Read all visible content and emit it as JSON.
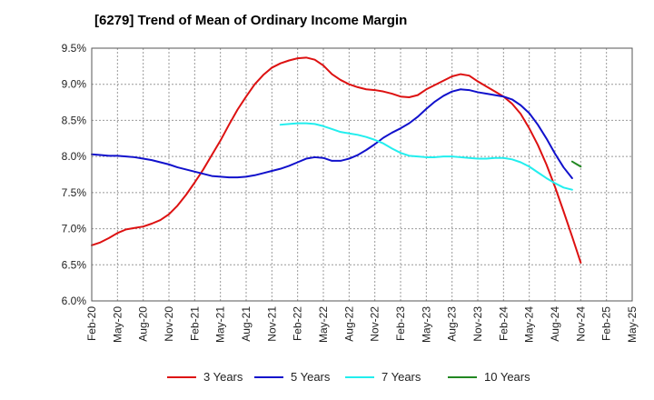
{
  "chart_data": {
    "type": "line",
    "title": "[6279]  Trend of Mean of Ordinary Income Margin",
    "xlabel": "",
    "ylabel": "",
    "ylim": [
      6.0,
      9.5
    ],
    "y_ticks": [
      6.0,
      6.5,
      7.0,
      7.5,
      8.0,
      8.5,
      9.0,
      9.5
    ],
    "y_tick_labels": [
      "6.0%",
      "6.5%",
      "7.0%",
      "7.5%",
      "8.0%",
      "8.5%",
      "9.0%",
      "9.5%"
    ],
    "x_tick_labels": [
      "Feb-20",
      "May-20",
      "Aug-20",
      "Nov-20",
      "Feb-21",
      "May-21",
      "Aug-21",
      "Nov-21",
      "Feb-22",
      "May-22",
      "Aug-22",
      "Nov-22",
      "Feb-23",
      "May-23",
      "Aug-23",
      "Nov-23",
      "Feb-24",
      "May-24",
      "Aug-24",
      "Nov-24",
      "Feb-25",
      "May-25"
    ],
    "grid": true,
    "legend_position": "bottom",
    "series": [
      {
        "name": "3 Years",
        "color": "#dd1111",
        "start_index": 0,
        "values": [
          6.77,
          6.81,
          6.87,
          6.94,
          6.99,
          7.01,
          7.03,
          7.07,
          7.12,
          7.2,
          7.32,
          7.47,
          7.64,
          7.82,
          8.02,
          8.22,
          8.44,
          8.65,
          8.83,
          9.0,
          9.13,
          9.23,
          9.29,
          9.33,
          9.36,
          9.37,
          9.34,
          9.26,
          9.14,
          9.06,
          9.0,
          8.96,
          8.93,
          8.92,
          8.9,
          8.87,
          8.83,
          8.82,
          8.85,
          8.93,
          8.99,
          9.05,
          9.11,
          9.14,
          9.12,
          9.04,
          8.97,
          8.9,
          8.83,
          8.73,
          8.59,
          8.39,
          8.16,
          7.89,
          7.58,
          7.24,
          6.89,
          6.53
        ]
      },
      {
        "name": "5 Years",
        "color": "#1111cc",
        "start_index": 0,
        "values": [
          8.03,
          8.02,
          8.01,
          8.01,
          8.0,
          7.99,
          7.97,
          7.95,
          7.92,
          7.89,
          7.85,
          7.82,
          7.79,
          7.76,
          7.73,
          7.72,
          7.71,
          7.71,
          7.72,
          7.74,
          7.77,
          7.8,
          7.83,
          7.87,
          7.92,
          7.97,
          7.99,
          7.98,
          7.94,
          7.94,
          7.97,
          8.02,
          8.09,
          8.17,
          8.26,
          8.33,
          8.39,
          8.46,
          8.55,
          8.66,
          8.76,
          8.84,
          8.9,
          8.93,
          8.92,
          8.89,
          8.87,
          8.85,
          8.83,
          8.79,
          8.71,
          8.6,
          8.44,
          8.25,
          8.04,
          7.85,
          7.7
        ]
      },
      {
        "name": "7 Years",
        "color": "#22eeee",
        "start_index": 22,
        "values": [
          8.44,
          8.45,
          8.46,
          8.46,
          8.45,
          8.42,
          8.38,
          8.34,
          8.32,
          8.3,
          8.27,
          8.23,
          8.18,
          8.11,
          8.05,
          8.01,
          8.0,
          7.99,
          7.99,
          8.0,
          8.0,
          7.99,
          7.98,
          7.97,
          7.97,
          7.98,
          7.98,
          7.96,
          7.92,
          7.86,
          7.78,
          7.7,
          7.63,
          7.57,
          7.54
        ]
      },
      {
        "name": "10 Years",
        "color": "#228822",
        "start_index": 56,
        "values": [
          7.93,
          7.86
        ]
      }
    ]
  }
}
